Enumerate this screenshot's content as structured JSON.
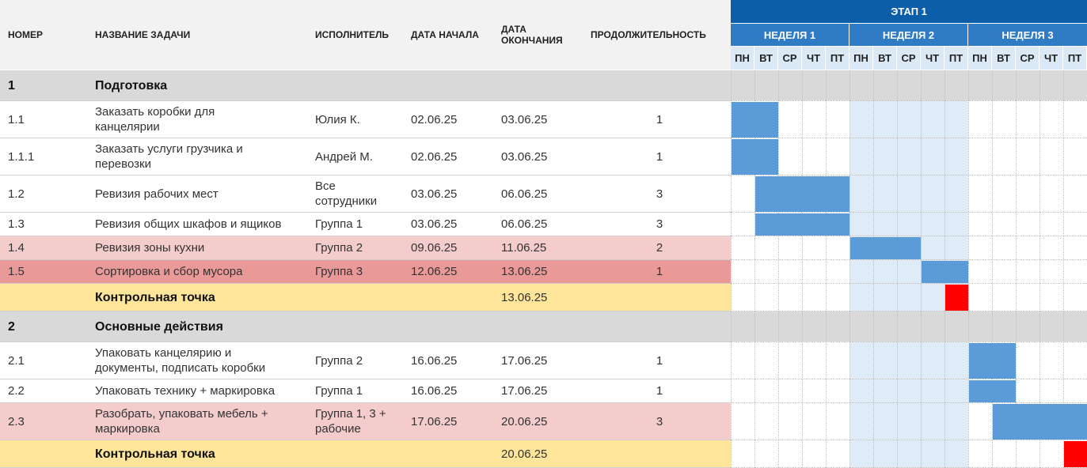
{
  "headers": {
    "num": "НОМЕР",
    "name": "НАЗВАНИЕ ЗАДАЧИ",
    "owner": "ИСПОЛНИТЕЛЬ",
    "start": "ДАТА НАЧАЛА",
    "end_line1": "ДАТА",
    "end_line2": "ОКОНЧАНИЯ",
    "duration": "ПРОДОЛЖИТЕЛЬНОСТЬ"
  },
  "timeline": {
    "stage": "ЭТАП 1",
    "weeks": [
      "НЕДЕЛЯ 1",
      "НЕДЕЛЯ 2",
      "НЕДЕЛЯ 3"
    ],
    "days": [
      "ПН",
      "ВТ",
      "СР",
      "ЧТ",
      "ПТ"
    ]
  },
  "colors": {
    "section_bg": "#d9d9d9",
    "highlight_light": "#f4cccc",
    "highlight_dark": "#ea9999",
    "milestone_bg": "#ffe599",
    "bar": "#5b9bd8",
    "milestone_marker": "#ff0000",
    "week2_shade": "#dfecf8"
  },
  "rows": [
    {
      "type": "section",
      "num": "1",
      "name": "Подготовка"
    },
    {
      "type": "task",
      "num": "1.1",
      "name": "Заказать коробки для\nканцелярии",
      "owner": "Юлия К.",
      "start": "02.06.25",
      "end": "03.06.25",
      "duration": "1",
      "bar_start_day": 0,
      "bar_days": 2
    },
    {
      "type": "task",
      "num": "1.1.1",
      "name": "Заказать услуги грузчика и\nперевозки",
      "owner": "Андрей М.",
      "start": "02.06.25",
      "end": "03.06.25",
      "duration": "1",
      "bar_start_day": 0,
      "bar_days": 2
    },
    {
      "type": "task",
      "num": "1.2",
      "name": "Ревизия рабочих мест",
      "owner": "Все\nсотрудники",
      "start": "03.06.25",
      "end": "06.06.25",
      "duration": "3",
      "bar_start_day": 1,
      "bar_days": 4
    },
    {
      "type": "task",
      "num": "1.3",
      "name": "Ревизия общих шкафов и ящиков",
      "owner": "Группа 1",
      "start": "03.06.25",
      "end": "06.06.25",
      "duration": "3",
      "bar_start_day": 1,
      "bar_days": 4
    },
    {
      "type": "task",
      "highlight": "light",
      "num": "1.4",
      "name": "Ревизия зоны кухни",
      "owner": "Группа 2",
      "start": "09.06.25",
      "end": "11.06.25",
      "duration": "2",
      "bar_start_day": 5,
      "bar_days": 3
    },
    {
      "type": "task",
      "highlight": "dark",
      "num": "1.5",
      "name": "Сортировка и сбор мусора",
      "owner": "Группа 3",
      "start": "12.06.25",
      "end": "13.06.25",
      "duration": "1",
      "bar_start_day": 8,
      "bar_days": 2
    },
    {
      "type": "milestone",
      "name": "Контрольная точка",
      "end": "13.06.25",
      "marker_day": 9
    },
    {
      "type": "section",
      "num": "2",
      "name": "Основные действия"
    },
    {
      "type": "task",
      "num": "2.1",
      "name": "Упаковать канцелярию и\nдокументы, подписать коробки",
      "owner": "Группа 2",
      "start": "16.06.25",
      "end": "17.06.25",
      "duration": "1",
      "bar_start_day": 10,
      "bar_days": 2
    },
    {
      "type": "task",
      "num": "2.2",
      "name": "Упаковать технику + маркировка",
      "owner": "Группа 1",
      "start": "16.06.25",
      "end": "17.06.25",
      "duration": "1",
      "bar_start_day": 10,
      "bar_days": 2
    },
    {
      "type": "task",
      "highlight": "light",
      "num": "2.3",
      "name": "Разобрать, упаковать мебель +\nмаркировка",
      "owner": "Группа 1, 3 +\nрабочие",
      "start": "17.06.25",
      "end": "20.06.25",
      "duration": "3",
      "bar_start_day": 11,
      "bar_days": 4
    },
    {
      "type": "milestone",
      "name": "Контрольная точка",
      "end": "20.06.25",
      "marker_day": 14
    }
  ]
}
